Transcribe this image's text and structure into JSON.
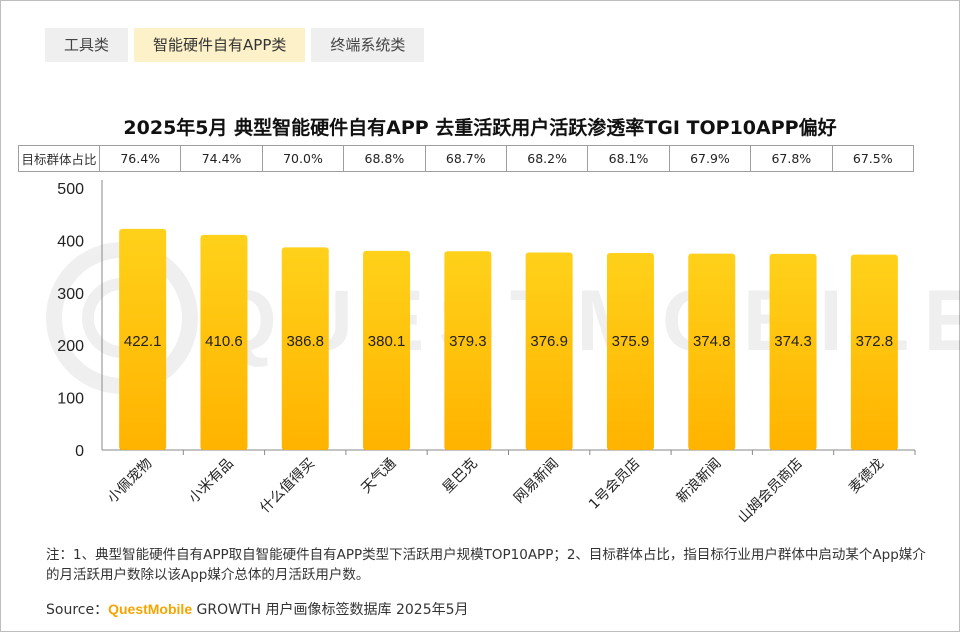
{
  "tabs": [
    {
      "label": "工具类",
      "active": false
    },
    {
      "label": "智能硬件自有APP类",
      "active": true
    },
    {
      "label": "终端系统类",
      "active": false
    }
  ],
  "watermark": "QUESTMOBILE",
  "share_row": {
    "label": "目标群体占比",
    "values": [
      "76.4%",
      "74.4%",
      "70.0%",
      "68.8%",
      "68.7%",
      "68.2%",
      "68.1%",
      "67.9%",
      "67.8%",
      "67.5%"
    ]
  },
  "chart_data": {
    "type": "bar",
    "title": "2025年5月 典型智能硬件自有APP 去重活跃用户活跃渗透率TGI TOP10APP偏好",
    "categories": [
      "小佩宠物",
      "小米有品",
      "什么值得买",
      "天气通",
      "星巴克",
      "网易新闻",
      "1号会员店",
      "新浪新闻",
      "山姆会员商店",
      "麦德龙"
    ],
    "values": [
      422.1,
      410.6,
      386.8,
      380.1,
      379.3,
      376.9,
      375.9,
      374.8,
      374.3,
      372.8
    ],
    "value_labels": [
      "422.1",
      "410.6",
      "386.8",
      "380.1",
      "379.3",
      "376.9",
      "375.9",
      "374.8",
      "374.3",
      "372.8"
    ],
    "ylim": [
      0,
      500
    ],
    "yticks": [
      "0",
      "100",
      "200",
      "300",
      "400",
      "500"
    ],
    "xlabel": "",
    "ylabel": "",
    "grid": false,
    "legend": "none",
    "bar_color_top": "#ffd11a",
    "bar_color_bottom": "#ffb300"
  },
  "footer": {
    "note": "注：1、典型智能硬件自有APP取自智能硬件自有APP类型下活跃用户规模TOP10APP；2、目标群体占比，指目标行业用户群体中启动某个App媒介的月活跃用户数除以该App媒介总体的月活跃用户数。",
    "source_prefix": "Source：",
    "source_brand": "QuestMobile",
    "source_suffix": " GROWTH 用户画像标签数据库 2025年5月"
  }
}
